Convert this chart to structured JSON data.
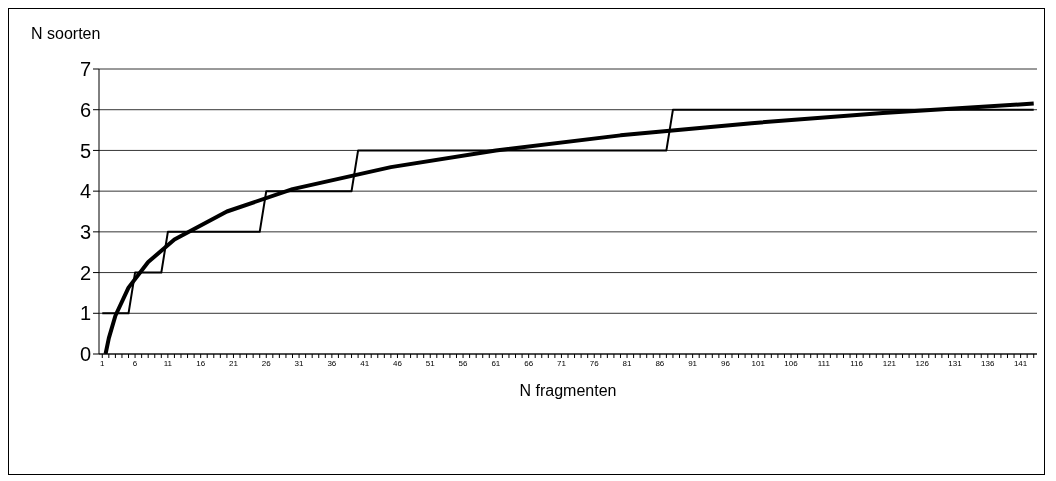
{
  "chart_data": {
    "type": "line",
    "xlabel": "N fragmenten",
    "ylabel": "N soorten",
    "xlim": [
      0.5,
      143.5
    ],
    "ylim": [
      0,
      7
    ],
    "yticks": [
      0,
      1,
      2,
      3,
      4,
      5,
      6,
      7
    ],
    "xticks": [
      1,
      {
        "value": 2,
        "label": null
      },
      {
        "value": 3,
        "label": null
      },
      {
        "value": 4,
        "label": null
      },
      {
        "value": 5,
        "label": null
      },
      6,
      {
        "value": 7,
        "label": null
      },
      {
        "value": 8,
        "label": null
      },
      {
        "value": 9,
        "label": null
      },
      {
        "value": 10,
        "label": null
      },
      11,
      {
        "value": 12,
        "label": null
      },
      {
        "value": 13,
        "label": null
      },
      {
        "value": 14,
        "label": null
      },
      {
        "value": 15,
        "label": null
      },
      16,
      {
        "value": 17,
        "label": null
      },
      {
        "value": 18,
        "label": null
      },
      {
        "value": 19,
        "label": null
      },
      {
        "value": 20,
        "label": null
      },
      21,
      {
        "value": 22,
        "label": null
      },
      {
        "value": 23,
        "label": null
      },
      {
        "value": 24,
        "label": null
      },
      {
        "value": 25,
        "label": null
      },
      26,
      {
        "value": 27,
        "label": null
      },
      {
        "value": 28,
        "label": null
      },
      {
        "value": 29,
        "label": null
      },
      {
        "value": 30,
        "label": null
      },
      31,
      {
        "value": 32,
        "label": null
      },
      {
        "value": 33,
        "label": null
      },
      {
        "value": 34,
        "label": null
      },
      {
        "value": 35,
        "label": null
      },
      36,
      {
        "value": 37,
        "label": null
      },
      {
        "value": 38,
        "label": null
      },
      {
        "value": 39,
        "label": null
      },
      {
        "value": 40,
        "label": null
      },
      41,
      {
        "value": 42,
        "label": null
      },
      {
        "value": 43,
        "label": null
      },
      {
        "value": 44,
        "label": null
      },
      {
        "value": 45,
        "label": null
      },
      46,
      {
        "value": 47,
        "label": null
      },
      {
        "value": 48,
        "label": null
      },
      {
        "value": 49,
        "label": null
      },
      {
        "value": 50,
        "label": null
      },
      51,
      {
        "value": 52,
        "label": null
      },
      {
        "value": 53,
        "label": null
      },
      {
        "value": 54,
        "label": null
      },
      {
        "value": 55,
        "label": null
      },
      56,
      {
        "value": 57,
        "label": null
      },
      {
        "value": 58,
        "label": null
      },
      {
        "value": 59,
        "label": null
      },
      {
        "value": 60,
        "label": null
      },
      61,
      {
        "value": 62,
        "label": null
      },
      {
        "value": 63,
        "label": null
      },
      {
        "value": 64,
        "label": null
      },
      {
        "value": 65,
        "label": null
      },
      66,
      {
        "value": 67,
        "label": null
      },
      {
        "value": 68,
        "label": null
      },
      {
        "value": 69,
        "label": null
      },
      {
        "value": 70,
        "label": null
      },
      71,
      {
        "value": 72,
        "label": null
      },
      {
        "value": 73,
        "label": null
      },
      {
        "value": 74,
        "label": null
      },
      {
        "value": 75,
        "label": null
      },
      76,
      {
        "value": 77,
        "label": null
      },
      {
        "value": 78,
        "label": null
      },
      {
        "value": 79,
        "label": null
      },
      {
        "value": 80,
        "label": null
      },
      81,
      {
        "value": 82,
        "label": null
      },
      {
        "value": 83,
        "label": null
      },
      {
        "value": 84,
        "label": null
      },
      {
        "value": 85,
        "label": null
      },
      86,
      {
        "value": 87,
        "label": null
      },
      {
        "value": 88,
        "label": null
      },
      {
        "value": 89,
        "label": null
      },
      {
        "value": 90,
        "label": null
      },
      91,
      {
        "value": 92,
        "label": null
      },
      {
        "value": 93,
        "label": null
      },
      {
        "value": 94,
        "label": null
      },
      {
        "value": 95,
        "label": null
      },
      96,
      {
        "value": 97,
        "label": null
      },
      {
        "value": 98,
        "label": null
      },
      {
        "value": 99,
        "label": null
      },
      {
        "value": 100,
        "label": null
      },
      101,
      {
        "value": 102,
        "label": null
      },
      {
        "value": 103,
        "label": null
      },
      {
        "value": 104,
        "label": null
      },
      {
        "value": 105,
        "label": null
      },
      106,
      {
        "value": 107,
        "label": null
      },
      {
        "value": 108,
        "label": null
      },
      {
        "value": 109,
        "label": null
      },
      {
        "value": 110,
        "label": null
      },
      111,
      {
        "value": 112,
        "label": null
      },
      {
        "value": 113,
        "label": null
      },
      {
        "value": 114,
        "label": null
      },
      {
        "value": 115,
        "label": null
      },
      116,
      {
        "value": 117,
        "label": null
      },
      {
        "value": 118,
        "label": null
      },
      {
        "value": 119,
        "label": null
      },
      {
        "value": 120,
        "label": null
      },
      121,
      {
        "value": 122,
        "label": null
      },
      {
        "value": 123,
        "label": null
      },
      {
        "value": 124,
        "label": null
      },
      {
        "value": 125,
        "label": null
      },
      126,
      {
        "value": 127,
        "label": null
      },
      {
        "value": 128,
        "label": null
      },
      {
        "value": 129,
        "label": null
      },
      {
        "value": 130,
        "label": null
      },
      131,
      {
        "value": 132,
        "label": null
      },
      {
        "value": 133,
        "label": null
      },
      {
        "value": 134,
        "label": null
      },
      {
        "value": 135,
        "label": null
      },
      136,
      {
        "value": 137,
        "label": null
      },
      {
        "value": 138,
        "label": null
      },
      {
        "value": 139,
        "label": null
      },
      {
        "value": 140,
        "label": null
      },
      141,
      {
        "value": 142,
        "label": null
      },
      {
        "value": 143,
        "label": null
      }
    ],
    "grid": "y",
    "marker": "none",
    "line_style": "solid",
    "series": [
      {
        "color": "#000000",
        "x": [
          1,
          2,
          3,
          4,
          5,
          6,
          7,
          8,
          9,
          10,
          11,
          12,
          13,
          14,
          15,
          16,
          17,
          18,
          19,
          20,
          21,
          22,
          23,
          24,
          25,
          26,
          27,
          28,
          29,
          30,
          31,
          32,
          33,
          34,
          35,
          36,
          37,
          38,
          39,
          40,
          41,
          42,
          43,
          44,
          45,
          46,
          47,
          48,
          49,
          50,
          51,
          52,
          53,
          54,
          55,
          56,
          57,
          58,
          59,
          60,
          61,
          62,
          63,
          64,
          65,
          66,
          67,
          68,
          69,
          70,
          71,
          72,
          73,
          74,
          75,
          76,
          77,
          78,
          79,
          80,
          81,
          82,
          83,
          84,
          85,
          86,
          87,
          88,
          89,
          90,
          91,
          92,
          93,
          94,
          95,
          96,
          97,
          98,
          99,
          100,
          101,
          102,
          103,
          104,
          105,
          106,
          107,
          108,
          109,
          110,
          111,
          112,
          113,
          114,
          115,
          116,
          117,
          118,
          119,
          120,
          121,
          122,
          123,
          124,
          125,
          126,
          127,
          128,
          129,
          130,
          131,
          132,
          133,
          134,
          135,
          136,
          137,
          138,
          139,
          140,
          141,
          142,
          143
        ],
        "values": [
          1,
          1,
          1,
          1,
          1,
          2,
          2,
          2,
          2,
          2,
          3,
          3,
          3,
          3,
          3,
          3,
          3,
          3,
          3,
          3,
          3,
          3,
          3,
          3,
          3,
          4,
          4,
          4,
          4,
          4,
          4,
          4,
          4,
          4,
          4,
          4,
          4,
          4,
          4,
          5,
          5,
          5,
          5,
          5,
          5,
          5,
          5,
          5,
          5,
          5,
          5,
          5,
          5,
          5,
          5,
          5,
          5,
          5,
          5,
          5,
          5,
          5,
          5,
          5,
          5,
          5,
          5,
          5,
          5,
          5,
          5,
          5,
          5,
          5,
          5,
          5,
          5,
          5,
          5,
          5,
          5,
          5,
          5,
          5,
          5,
          5,
          5,
          6,
          6,
          6,
          6,
          6,
          6,
          6,
          6,
          6,
          6,
          6,
          6,
          6,
          6,
          6,
          6,
          6,
          6,
          6,
          6,
          6,
          6,
          6,
          6,
          6,
          6,
          6,
          6,
          6,
          6,
          6,
          6,
          6,
          6,
          6,
          6,
          6,
          6,
          6,
          6,
          6,
          6,
          6,
          6,
          6,
          6,
          6,
          6,
          6,
          6,
          6,
          6,
          6,
          6,
          6,
          6
        ]
      },
      {
        "type": "line",
        "color": "#000000",
        "x": [
          1.5,
          2,
          3,
          5,
          8,
          12,
          20,
          30,
          45,
          61,
          80,
          100,
          120,
          143
        ],
        "values": [
          0,
          0.39,
          0.94,
          1.63,
          2.26,
          2.81,
          3.5,
          4.05,
          4.59,
          5,
          5.37,
          5.67,
          5.92,
          6.15
        ]
      }
    ]
  }
}
